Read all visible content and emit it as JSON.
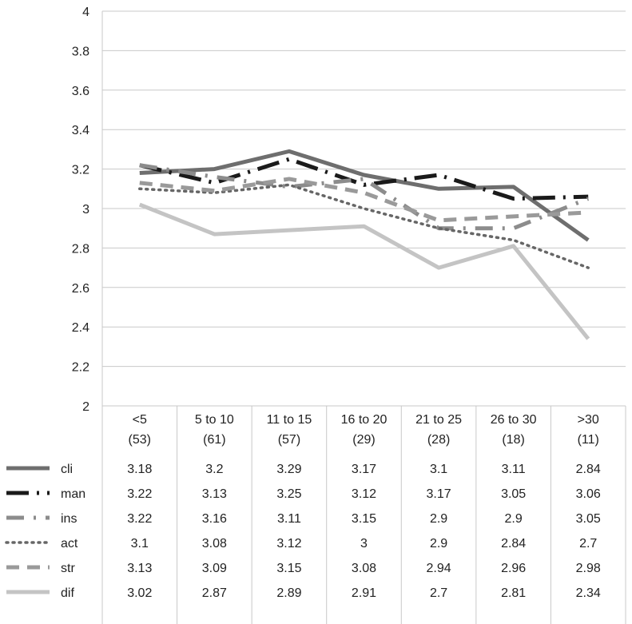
{
  "chart_data": {
    "type": "line",
    "categories": [
      [
        "<5",
        "(53)"
      ],
      [
        "5 to 10",
        "(61)"
      ],
      [
        "11 to 15",
        "(57)"
      ],
      [
        "16 to 20",
        "(29)"
      ],
      [
        "21 to 25",
        "(28)"
      ],
      [
        "26 to 30",
        "(18)"
      ],
      [
        ">30",
        "(11)"
      ]
    ],
    "ylim": [
      2,
      4
    ],
    "yticks": [
      "2",
      "2.2",
      "2.4",
      "2.6",
      "2.8",
      "3",
      "3.2",
      "3.4",
      "3.6",
      "3.8",
      "4"
    ],
    "grid": true,
    "legend_placement": "data-table-left",
    "series": [
      {
        "name": "cli",
        "values": [
          3.18,
          3.2,
          3.29,
          3.17,
          3.1,
          3.11,
          2.84
        ],
        "labels": [
          "3.18",
          "3.2",
          "3.29",
          "3.17",
          "3.1",
          "3.11",
          "2.84"
        ],
        "color": "#6e6e6e",
        "style": "solid"
      },
      {
        "name": "man",
        "values": [
          3.22,
          3.13,
          3.25,
          3.12,
          3.17,
          3.05,
          3.06
        ],
        "labels": [
          "3.22",
          "3.13",
          "3.25",
          "3.12",
          "3.17",
          "3.05",
          "3.06"
        ],
        "color": "#1a1a1a",
        "style": "long-dash-dot"
      },
      {
        "name": "ins",
        "values": [
          3.22,
          3.16,
          3.11,
          3.15,
          2.9,
          2.9,
          3.05
        ],
        "labels": [
          "3.22",
          "3.16",
          "3.11",
          "3.15",
          "2.9",
          "2.9",
          "3.05"
        ],
        "color": "#8c8c8c",
        "style": "dash-dot"
      },
      {
        "name": "act",
        "values": [
          3.1,
          3.08,
          3.12,
          3.0,
          2.9,
          2.84,
          2.7
        ],
        "labels": [
          "3.1",
          "3.08",
          "3.12",
          "3",
          "2.9",
          "2.84",
          "2.7"
        ],
        "color": "#666666",
        "style": "dotted"
      },
      {
        "name": "str",
        "values": [
          3.13,
          3.09,
          3.15,
          3.08,
          2.94,
          2.96,
          2.98
        ],
        "labels": [
          "3.13",
          "3.09",
          "3.15",
          "3.08",
          "2.94",
          "2.96",
          "2.98"
        ],
        "color": "#9a9a9a",
        "style": "dashed"
      },
      {
        "name": "dif",
        "values": [
          3.02,
          2.87,
          2.89,
          2.91,
          2.7,
          2.81,
          2.34
        ],
        "labels": [
          "3.02",
          "2.87",
          "2.89",
          "2.91",
          "2.7",
          "2.81",
          "2.34"
        ],
        "color": "#c4c4c4",
        "style": "solid"
      }
    ]
  }
}
